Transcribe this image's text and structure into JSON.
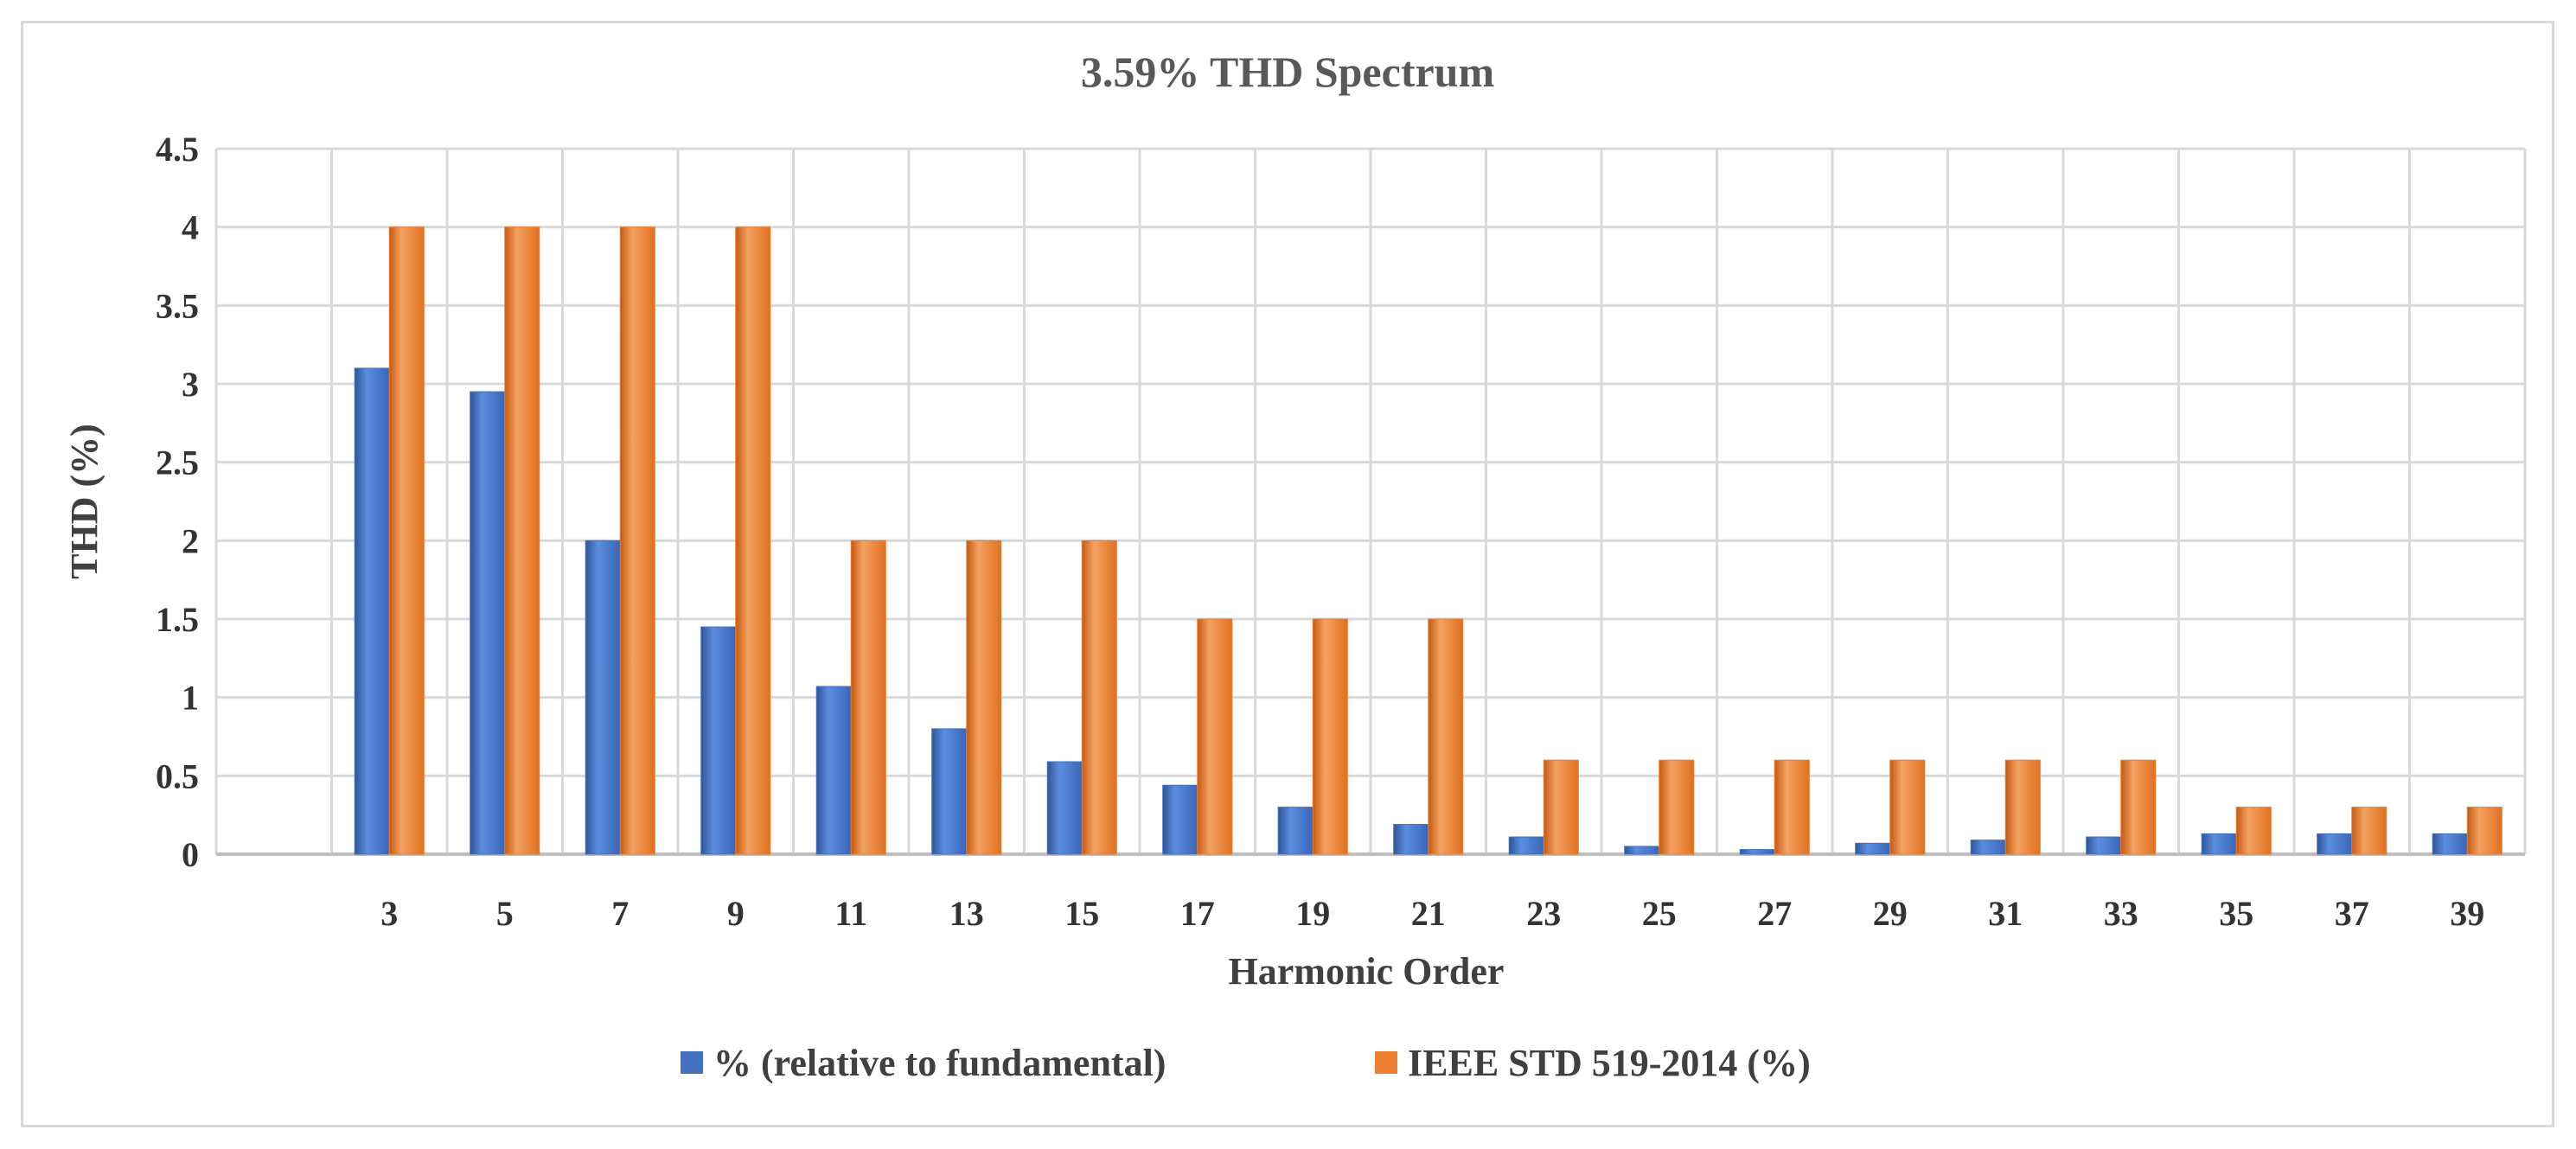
{
  "chart_data": {
    "type": "bar",
    "title": "3.59% THD Spectrum",
    "xlabel": "Harmonic Order",
    "ylabel": "THD (%)",
    "ylim": [
      0,
      4.5
    ],
    "yticks": [
      "0",
      "0.5",
      "1",
      "1.5",
      "2",
      "2.5",
      "3",
      "3.5",
      "4",
      "4.5"
    ],
    "categories": [
      "3",
      "5",
      "7",
      "9",
      "11",
      "13",
      "15",
      "17",
      "19",
      "21",
      "23",
      "25",
      "27",
      "29",
      "31",
      "33",
      "35",
      "37",
      "39"
    ],
    "series": [
      {
        "name": "% (relative to fundamental)",
        "color": "#4472C4",
        "values": [
          3.1,
          2.95,
          2.0,
          1.45,
          1.07,
          0.8,
          0.59,
          0.44,
          0.3,
          0.19,
          0.11,
          0.05,
          0.03,
          0.07,
          0.09,
          0.11,
          0.13,
          0.13,
          0.13
        ]
      },
      {
        "name": "IEEE STD 519-2014 (%)",
        "color": "#ED7D31",
        "values": [
          4.0,
          4.0,
          4.0,
          4.0,
          2.0,
          2.0,
          2.0,
          1.5,
          1.5,
          1.5,
          0.6,
          0.6,
          0.6,
          0.6,
          0.6,
          0.6,
          0.3,
          0.3,
          0.3
        ]
      }
    ],
    "grid": true,
    "legend_position": "bottom"
  }
}
